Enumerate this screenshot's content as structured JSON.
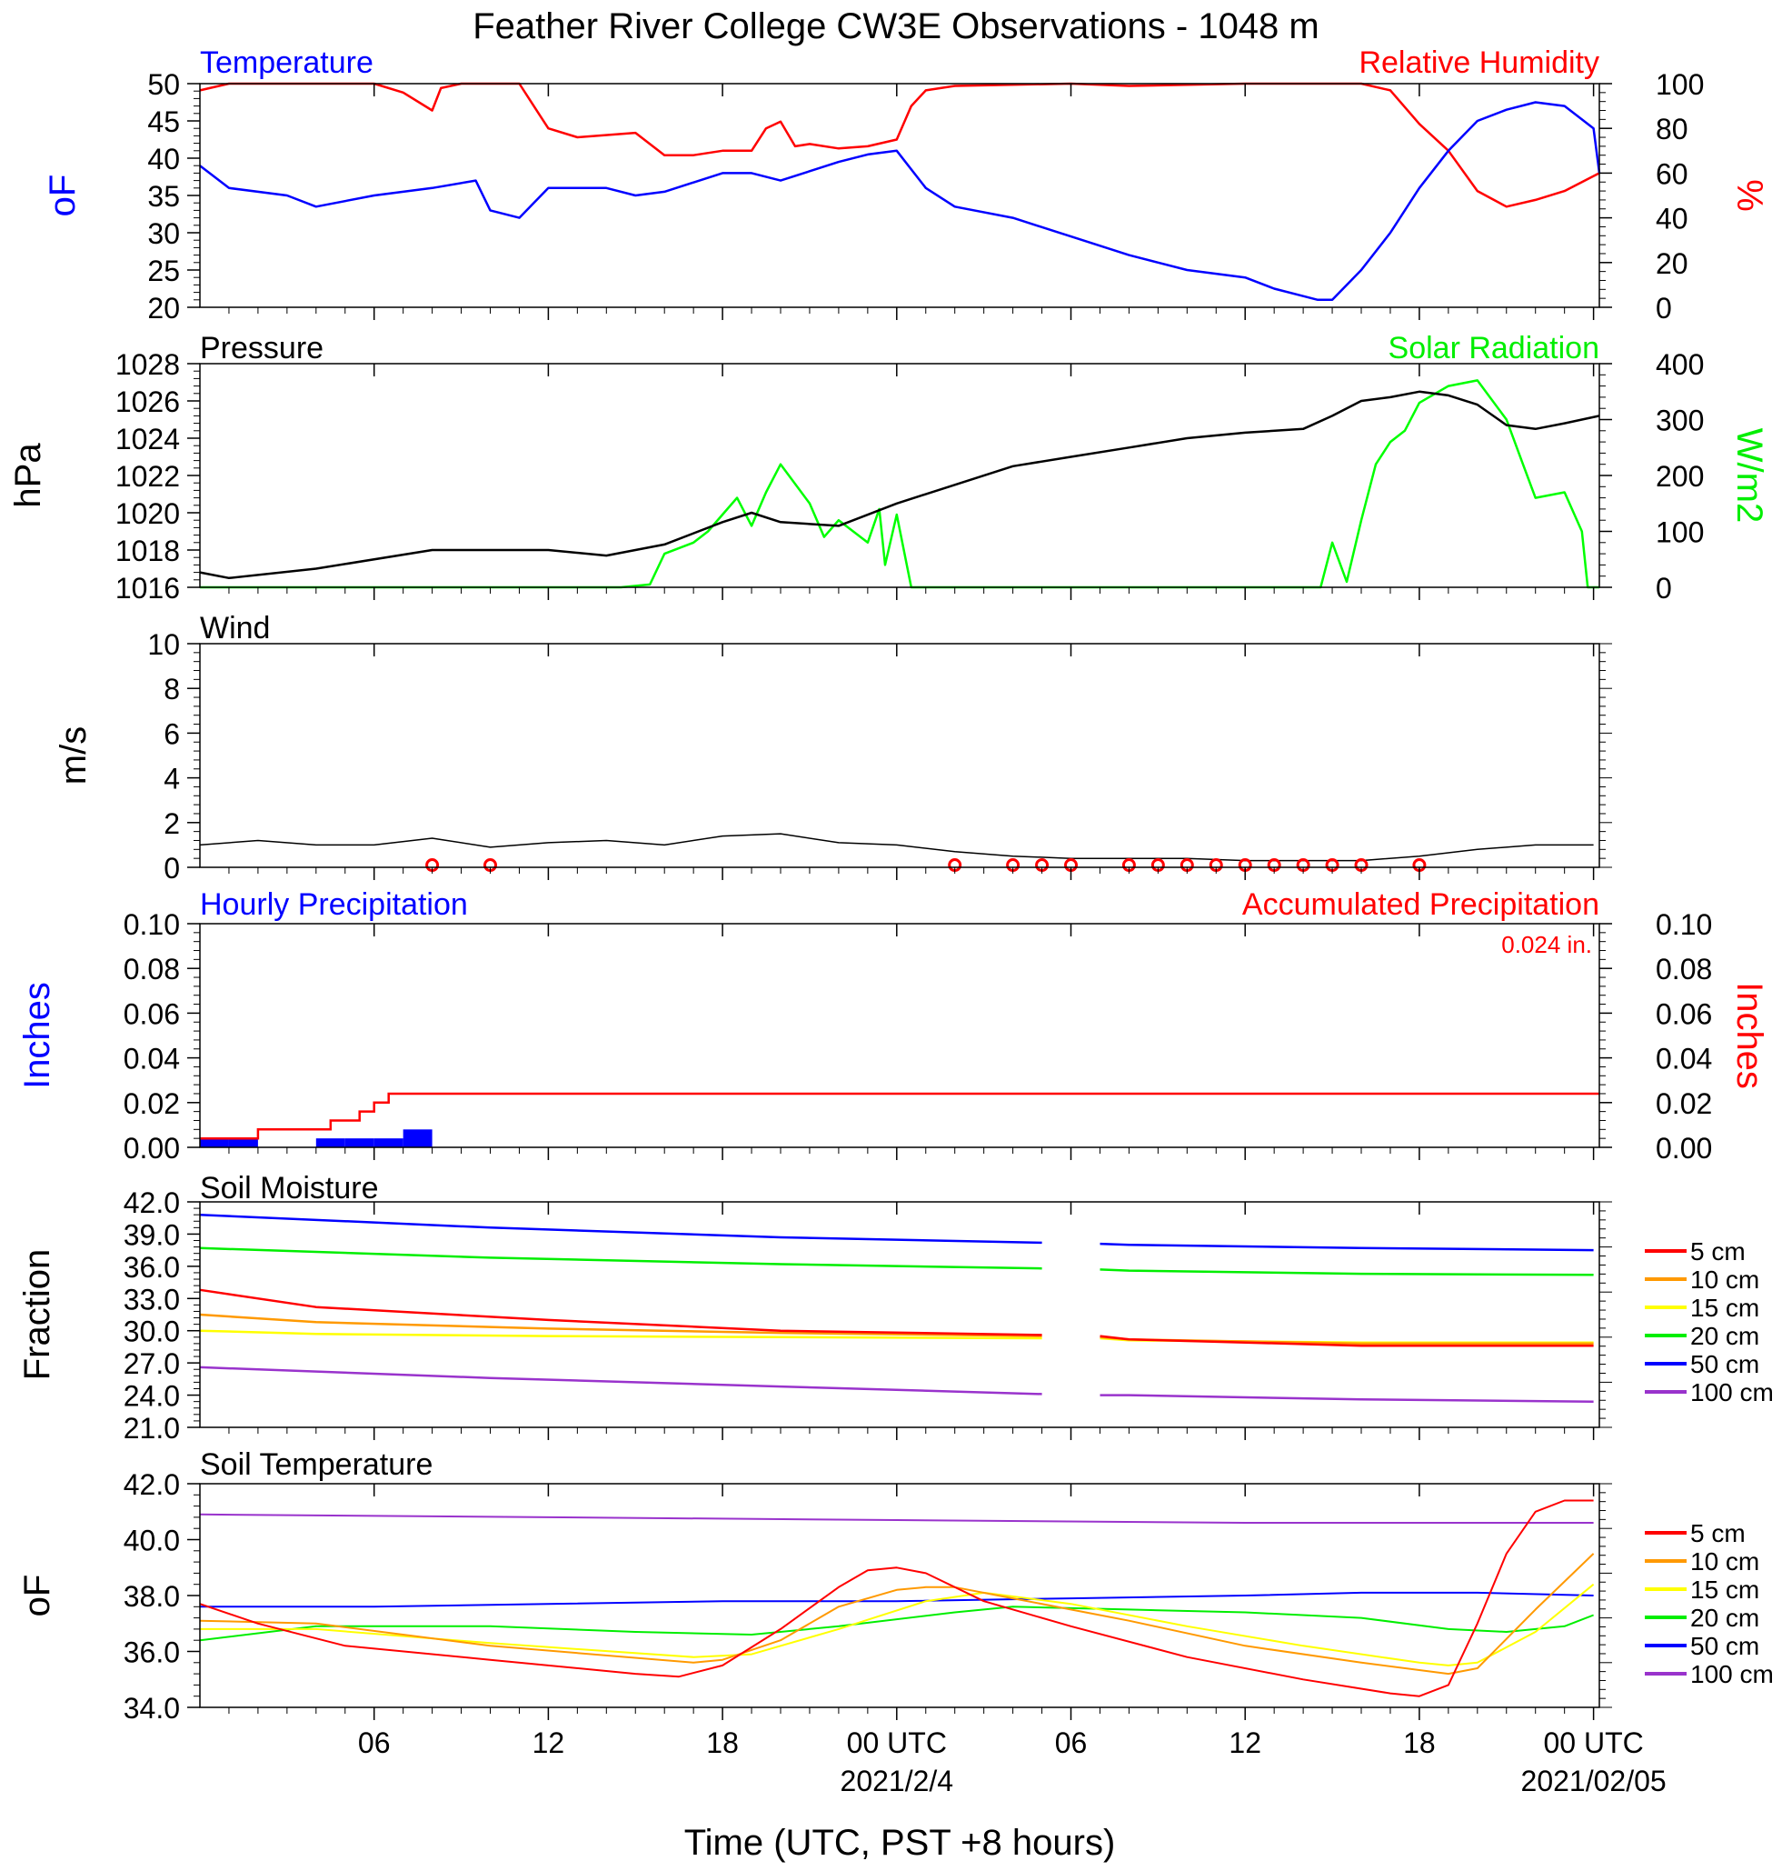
{
  "title": "Feather River College CW3E Observations - 1048 m",
  "xlabel": "Time (UTC, PST +8 hours)",
  "xaxis": {
    "tick_labels": [
      "06",
      "12",
      "18",
      "00 UTC",
      "06",
      "12",
      "18",
      "00 UTC"
    ],
    "tick_hours": [
      6,
      12,
      18,
      24,
      30,
      36,
      42,
      48
    ],
    "date_labels": [
      "2021/2/4",
      "2021/02/05"
    ],
    "date_label_hours": [
      24,
      48
    ],
    "range_hours": [
      0,
      48.2
    ]
  },
  "colors": {
    "temperature": "#0000ff",
    "humidity": "#ff0000",
    "pressure": "#000000",
    "solar": "#00ff00",
    "wind": "#000000",
    "wind_barb": "#ff0000",
    "precip_hourly": "#0000ff",
    "precip_accum": "#ff0000",
    "depth_5": "#ff0000",
    "depth_10": "#ff9900",
    "depth_15": "#ffff00",
    "depth_20": "#00ee00",
    "depth_50": "#0000ff",
    "depth_100": "#9933cc"
  },
  "panels": {
    "temp_rh": {
      "left_title": "Temperature",
      "right_title": "Relative Humidity",
      "left_ylabel": "oF",
      "right_ylabel": "%",
      "left_ticks": [
        "50",
        "45",
        "40",
        "35",
        "30",
        "25",
        "20"
      ],
      "right_ticks": [
        "100",
        "80",
        "60",
        "40",
        "20",
        "0"
      ]
    },
    "pressure_solar": {
      "left_title": "Pressure",
      "right_title": "Solar Radiation",
      "left_ylabel": "hPa",
      "right_ylabel": "W/m2",
      "left_ticks": [
        "1028",
        "1026",
        "1024",
        "1022",
        "1020",
        "1018",
        "1016"
      ],
      "right_ticks": [
        "400",
        "300",
        "200",
        "100",
        "0"
      ]
    },
    "wind": {
      "left_title": "Wind",
      "left_ylabel": "m/s",
      "left_ticks": [
        "10",
        "8",
        "6",
        "4",
        "2",
        "0"
      ]
    },
    "precip": {
      "left_title": "Hourly Precipitation",
      "right_title": "Accumulated Precipitation",
      "total_label": "0.024 in.",
      "left_ylabel": "Inches",
      "right_ylabel": "Inches",
      "left_ticks": [
        "0.10",
        "0.08",
        "0.06",
        "0.04",
        "0.02",
        "0.00"
      ],
      "right_ticks": [
        "0.10",
        "0.08",
        "0.06",
        "0.04",
        "0.02",
        "0.00"
      ]
    },
    "soil_moisture": {
      "left_title": "Soil Moisture",
      "left_ylabel": "Fraction",
      "left_ticks": [
        "42.0",
        "39.0",
        "36.0",
        "33.0",
        "30.0",
        "27.0",
        "24.0",
        "21.0"
      ],
      "legend": [
        "5 cm",
        "10 cm",
        "15 cm",
        "20 cm",
        "50 cm",
        "100 cm"
      ]
    },
    "soil_temperature": {
      "left_title": "Soil Temperature",
      "left_ylabel": "oF",
      "left_ticks": [
        "42.0",
        "40.0",
        "38.0",
        "36.0",
        "34.0"
      ],
      "legend": [
        "5 cm",
        "10 cm",
        "15 cm",
        "20 cm",
        "50 cm",
        "100 cm"
      ]
    }
  },
  "chart_data": [
    {
      "type": "line",
      "title": "Temperature / Relative Humidity",
      "ylabel": "oF",
      "ylim": [
        20,
        50
      ],
      "y2label": "%",
      "y2lim": [
        0,
        100
      ],
      "series": [
        {
          "name": "Temperature",
          "axis": "left",
          "x": [
            0,
            1,
            3,
            4,
            6,
            7,
            8,
            9.5,
            10,
            11,
            12,
            14,
            15,
            16,
            18,
            19,
            20,
            22,
            23,
            24,
            25,
            26,
            28,
            30,
            32,
            33,
            34,
            36,
            37,
            38,
            38.5,
            39,
            40,
            41,
            42,
            43,
            44,
            45,
            46,
            47,
            48,
            48.2
          ],
          "y": [
            39,
            36,
            35,
            33.5,
            35,
            35.5,
            36,
            37,
            33,
            32,
            36,
            36,
            35,
            35.5,
            38,
            38,
            37,
            39.5,
            40.5,
            41,
            36,
            33.5,
            32,
            29.5,
            27,
            26,
            25,
            24,
            22.5,
            21.5,
            21,
            21,
            25,
            30,
            36,
            41,
            45,
            46.5,
            47.5,
            47,
            44,
            38
          ]
        },
        {
          "name": "Relative Humidity",
          "axis": "right",
          "x": [
            0,
            1,
            6,
            7,
            8,
            8.3,
            9,
            10,
            11,
            11.5,
            12,
            13,
            15,
            16,
            17,
            18,
            19,
            19.5,
            20,
            20.5,
            21,
            22,
            23,
            24,
            24.5,
            25,
            26,
            30,
            32,
            36,
            40,
            41,
            42,
            43,
            44,
            45,
            46,
            47,
            48.2
          ],
          "y": [
            97,
            100,
            100,
            96,
            88,
            98,
            100,
            100,
            100,
            90,
            80,
            76,
            78,
            68,
            68,
            70,
            70,
            80,
            83,
            72,
            73,
            71,
            72,
            75,
            90,
            97,
            99,
            100,
            99,
            100,
            100,
            97,
            82,
            70,
            52,
            45,
            48,
            52,
            60
          ]
        }
      ]
    },
    {
      "type": "line",
      "title": "Pressure / Solar Radiation",
      "ylabel": "hPa",
      "ylim": [
        1016,
        1028
      ],
      "y2label": "W/m2",
      "y2lim": [
        0,
        400
      ],
      "series": [
        {
          "name": "Pressure",
          "axis": "left",
          "x": [
            0,
            1,
            4,
            8,
            12,
            14,
            16,
            18,
            19,
            20,
            22,
            24,
            26,
            28,
            30,
            32,
            34,
            36,
            38,
            39,
            40,
            41,
            42,
            43,
            44,
            45,
            46,
            47,
            48.2
          ],
          "y": [
            1016.8,
            1016.5,
            1017,
            1018,
            1018,
            1017.7,
            1018.3,
            1019.5,
            1020,
            1019.5,
            1019.3,
            1020.5,
            1021.5,
            1022.5,
            1023,
            1023.5,
            1024,
            1024.3,
            1024.5,
            1025.2,
            1026,
            1026.2,
            1026.5,
            1026.3,
            1025.8,
            1024.7,
            1024.5,
            1024.8,
            1025.2
          ]
        },
        {
          "name": "Solar Radiation",
          "axis": "right",
          "x": [
            0,
            14.5,
            15.5,
            16,
            17,
            17.5,
            18,
            18.5,
            19,
            19.5,
            20,
            21,
            21.5,
            22,
            23,
            23.4,
            23.6,
            24,
            24.5,
            25,
            38.6,
            39,
            39.5,
            40,
            40.5,
            41,
            41.5,
            42,
            43,
            44,
            45,
            45.5,
            46,
            47,
            47.6,
            47.8,
            48.2
          ],
          "y": [
            0,
            0,
            5,
            60,
            80,
            100,
            130,
            160,
            110,
            170,
            220,
            150,
            90,
            120,
            80,
            140,
            40,
            130,
            0,
            0,
            0,
            80,
            10,
            120,
            220,
            260,
            280,
            330,
            360,
            370,
            300,
            230,
            160,
            170,
            100,
            0,
            0
          ]
        }
      ]
    },
    {
      "type": "line",
      "title": "Wind",
      "ylabel": "m/s",
      "ylim": [
        0,
        10
      ],
      "series": [
        {
          "name": "Wind",
          "x": [
            0,
            2,
            4,
            6,
            8,
            10,
            12,
            14,
            16,
            18,
            20,
            22,
            24,
            26,
            28,
            30,
            32,
            34,
            36,
            38,
            40,
            42,
            44,
            46,
            48
          ],
          "y": [
            1.0,
            1.2,
            1.0,
            1.0,
            1.3,
            0.9,
            1.1,
            1.2,
            1.0,
            1.4,
            1.5,
            1.1,
            1.0,
            0.7,
            0.5,
            0.4,
            0.4,
            0.4,
            0.3,
            0.3,
            0.3,
            0.5,
            0.8,
            1.0,
            1.0
          ]
        }
      ],
      "barbs_calm_hours": [
        8,
        10,
        26,
        28,
        29,
        30,
        32,
        33,
        34,
        35,
        36,
        37,
        38,
        39,
        40,
        42
      ]
    },
    {
      "type": "bar",
      "title": "Hourly / Accumulated Precipitation",
      "ylabel": "Inches",
      "ylim": [
        0,
        0.1
      ],
      "series": [
        {
          "name": "Hourly Precipitation",
          "kind": "bar",
          "x": [
            0,
            1,
            4,
            5,
            6,
            7
          ],
          "y": [
            0.004,
            0.004,
            0.004,
            0.004,
            0.004,
            0.008
          ]
        },
        {
          "name": "Accumulated Precipitation",
          "kind": "step",
          "x": [
            0,
            2,
            4.5,
            5.5,
            6,
            6.5,
            7,
            48.2
          ],
          "y": [
            0.004,
            0.008,
            0.012,
            0.016,
            0.02,
            0.024,
            0.024,
            0.024
          ]
        }
      ]
    },
    {
      "type": "line",
      "title": "Soil Moisture",
      "ylabel": "Fraction",
      "ylim": [
        21,
        42
      ],
      "series": [
        {
          "name": "5 cm",
          "x": [
            0,
            4,
            12,
            20,
            29,
            30,
            31,
            32,
            40,
            48
          ],
          "y": [
            33.8,
            32.2,
            31,
            30,
            29.6,
            null,
            29.5,
            29.2,
            28.6,
            28.6
          ]
        },
        {
          "name": "10 cm",
          "x": [
            0,
            4,
            12,
            20,
            29,
            30,
            31,
            32,
            40,
            48
          ],
          "y": [
            31.5,
            30.8,
            30.2,
            29.8,
            29.5,
            null,
            29.4,
            29.2,
            28.8,
            28.8
          ]
        },
        {
          "name": "15 cm",
          "x": [
            0,
            4,
            12,
            20,
            29,
            30,
            31,
            32,
            40,
            48
          ],
          "y": [
            30,
            29.7,
            29.5,
            29.4,
            29.3,
            null,
            29.3,
            29.1,
            28.9,
            28.9
          ]
        },
        {
          "name": "20 cm",
          "x": [
            0,
            10,
            20,
            29,
            30,
            31,
            32,
            40,
            48
          ],
          "y": [
            37.7,
            36.8,
            36.2,
            35.8,
            null,
            35.7,
            35.6,
            35.3,
            35.2
          ]
        },
        {
          "name": "50 cm",
          "x": [
            0,
            10,
            20,
            29,
            30,
            31,
            32,
            40,
            48
          ],
          "y": [
            40.8,
            39.6,
            38.7,
            38.2,
            null,
            38.1,
            38,
            37.7,
            37.5
          ]
        },
        {
          "name": "100 cm",
          "x": [
            0,
            10,
            20,
            29,
            30,
            31,
            32,
            40,
            48
          ],
          "y": [
            26.6,
            25.6,
            24.8,
            24.1,
            null,
            24.0,
            24.0,
            23.6,
            23.4
          ]
        }
      ]
    },
    {
      "type": "line",
      "title": "Soil Temperature",
      "ylabel": "oF",
      "ylim": [
        34,
        42
      ],
      "series": [
        {
          "name": "5 cm",
          "x": [
            0,
            2,
            5,
            10,
            15,
            16.5,
            18,
            20,
            22,
            23,
            24,
            25,
            27,
            30,
            34,
            38,
            41,
            42,
            43,
            44,
            45,
            46,
            47,
            48
          ],
          "y": [
            37.7,
            37,
            36.2,
            35.7,
            35.2,
            35.1,
            35.5,
            36.8,
            38.3,
            38.9,
            39,
            38.8,
            37.8,
            36.9,
            35.8,
            35,
            34.5,
            34.4,
            34.8,
            37,
            39.5,
            41,
            41.4,
            41.4
          ]
        },
        {
          "name": "10 cm",
          "x": [
            0,
            4,
            10,
            17,
            18,
            20,
            22,
            24,
            25,
            26,
            28,
            32,
            36,
            40,
            43,
            44,
            46,
            48
          ],
          "y": [
            37.1,
            37,
            36.2,
            35.6,
            35.7,
            36.4,
            37.6,
            38.2,
            38.3,
            38.3,
            37.9,
            37.1,
            36.2,
            35.6,
            35.2,
            35.4,
            37.5,
            39.5
          ]
        },
        {
          "name": "15 cm",
          "x": [
            0,
            4,
            10,
            17,
            19,
            22,
            25,
            27,
            30,
            34,
            38,
            42,
            43,
            44,
            46,
            48
          ],
          "y": [
            36.8,
            36.8,
            36.3,
            35.8,
            35.9,
            36.8,
            37.8,
            38.1,
            37.7,
            36.9,
            36.2,
            35.6,
            35.5,
            35.6,
            36.7,
            38.4
          ]
        },
        {
          "name": "20 cm",
          "x": [
            0,
            4,
            10,
            15,
            19,
            22,
            26,
            28,
            32,
            36,
            40,
            43,
            45,
            47,
            48
          ],
          "y": [
            36.4,
            36.9,
            36.9,
            36.7,
            36.6,
            36.9,
            37.4,
            37.6,
            37.5,
            37.4,
            37.2,
            36.8,
            36.7,
            36.9,
            37.3
          ]
        },
        {
          "name": "50 cm",
          "x": [
            0,
            6,
            12,
            18,
            24,
            30,
            36,
            40,
            44,
            48
          ],
          "y": [
            37.6,
            37.6,
            37.7,
            37.8,
            37.8,
            37.9,
            38.0,
            38.1,
            38.1,
            38.0
          ]
        },
        {
          "name": "100 cm",
          "x": [
            0,
            12,
            24,
            36,
            48
          ],
          "y": [
            40.9,
            40.8,
            40.7,
            40.6,
            40.6
          ]
        }
      ]
    }
  ]
}
